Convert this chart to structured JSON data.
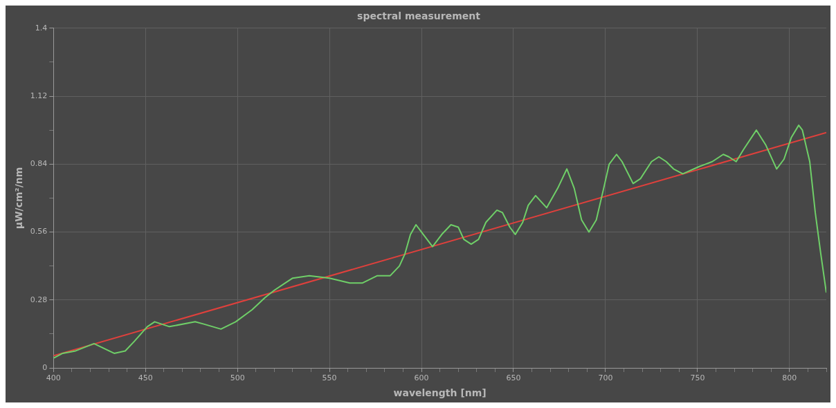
{
  "chart_data": {
    "type": "line",
    "title": "spectral measurement",
    "xlabel": "wavelength [nm]",
    "ylabel": "μW/cm²/nm",
    "xlim": [
      400,
      820
    ],
    "xticks": [
      400,
      {
        "value": 410,
        "label": null
      },
      {
        "value": 420,
        "label": null
      },
      {
        "value": 430,
        "label": null
      },
      {
        "value": 440,
        "label": null
      },
      450,
      {
        "value": 460,
        "label": null
      },
      {
        "value": 470,
        "label": null
      },
      {
        "value": 480,
        "label": null
      },
      {
        "value": 490,
        "label": null
      },
      500,
      {
        "value": 510,
        "label": null
      },
      {
        "value": 520,
        "label": null
      },
      {
        "value": 530,
        "label": null
      },
      {
        "value": 540,
        "label": null
      },
      550,
      {
        "value": 560,
        "label": null
      },
      {
        "value": 570,
        "label": null
      },
      {
        "value": 580,
        "label": null
      },
      {
        "value": 590,
        "label": null
      },
      600,
      {
        "value": 610,
        "label": null
      },
      {
        "value": 620,
        "label": null
      },
      {
        "value": 630,
        "label": null
      },
      {
        "value": 640,
        "label": null
      },
      650,
      {
        "value": 660,
        "label": null
      },
      {
        "value": 670,
        "label": null
      },
      {
        "value": 680,
        "label": null
      },
      {
        "value": 690,
        "label": null
      },
      700,
      {
        "value": 710,
        "label": null
      },
      {
        "value": 720,
        "label": null
      },
      {
        "value": 730,
        "label": null
      },
      {
        "value": 740,
        "label": null
      },
      750,
      {
        "value": 760,
        "label": null
      },
      {
        "value": 770,
        "label": null
      },
      {
        "value": 780,
        "label": null
      },
      {
        "value": 790,
        "label": null
      },
      800,
      {
        "value": 810,
        "label": null
      },
      {
        "value": 820,
        "label": null
      }
    ],
    "ylim": [
      0,
      1.4
    ],
    "yticks": [
      0,
      {
        "value": 0.14,
        "label": null
      },
      0.28,
      {
        "value": 0.42,
        "label": null
      },
      0.56,
      {
        "value": 0.7,
        "label": null
      },
      0.84,
      {
        "value": 0.98,
        "label": null
      },
      1.12,
      {
        "value": 1.26,
        "label": null
      },
      1.4
    ],
    "grid": true,
    "marker": "none",
    "line_style": "solid",
    "series": [
      {
        "color": "#6fcf68",
        "x": [
          400,
          405,
          412,
          422,
          433,
          439,
          444,
          451,
          455,
          463,
          477,
          482,
          491,
          499,
          508,
          515,
          520,
          526,
          530,
          539,
          550,
          561,
          568,
          576,
          583,
          588,
          591,
          594,
          597,
          601,
          606,
          611,
          616,
          620,
          623,
          627,
          631,
          635,
          641,
          644,
          648,
          651,
          655,
          658,
          662,
          668,
          674,
          679,
          683,
          687,
          691,
          695,
          699,
          702,
          706,
          709,
          715,
          719,
          725,
          729,
          733,
          737,
          742,
          751,
          758,
          764,
          767,
          771,
          775,
          782,
          787,
          793,
          797,
          801,
          805,
          807,
          811,
          814,
          817,
          820
        ],
        "values": [
          0.04,
          0.06,
          0.07,
          0.1,
          0.06,
          0.07,
          0.11,
          0.17,
          0.19,
          0.17,
          0.19,
          0.18,
          0.16,
          0.19,
          0.24,
          0.29,
          0.32,
          0.35,
          0.37,
          0.38,
          0.37,
          0.35,
          0.35,
          0.38,
          0.38,
          0.42,
          0.47,
          0.55,
          0.59,
          0.55,
          0.5,
          0.55,
          0.59,
          0.58,
          0.53,
          0.51,
          0.53,
          0.6,
          0.65,
          0.64,
          0.58,
          0.55,
          0.6,
          0.67,
          0.71,
          0.66,
          0.74,
          0.82,
          0.74,
          0.61,
          0.56,
          0.61,
          0.74,
          0.84,
          0.88,
          0.85,
          0.76,
          0.78,
          0.85,
          0.87,
          0.85,
          0.82,
          0.8,
          0.83,
          0.85,
          0.88,
          0.87,
          0.85,
          0.9,
          0.98,
          0.92,
          0.82,
          0.86,
          0.95,
          1.0,
          0.98,
          0.85,
          0.64,
          0.47,
          0.31
        ]
      },
      {
        "color": "#e0403c",
        "x": [
          400,
          820
        ],
        "values": [
          0.05,
          0.97
        ]
      }
    ]
  }
}
